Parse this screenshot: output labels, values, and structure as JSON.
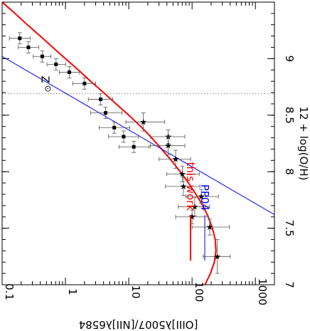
{
  "chart_data": {
    "type": "scatter",
    "orientation": "rotated-90",
    "xlabel": "12 + log(O/H)",
    "ylabel": "[OIII]λ5007/[NII]λ6584",
    "x_reversed": true,
    "xlim": [
      9.5,
      7.0
    ],
    "ylim": [
      0.1,
      2000
    ],
    "y_scale": "log",
    "x_ticks": [
      "9",
      "8.5",
      "8",
      "7.5",
      "7"
    ],
    "x_tick_values": [
      9,
      8.5,
      8,
      7.5,
      7
    ],
    "y_ticks": [
      "0.1",
      "1",
      "10",
      "100",
      "1000"
    ],
    "y_tick_values": [
      0.1,
      1,
      10,
      100,
      1000
    ],
    "reference_line": {
      "label": "Z",
      "symbol": "⊙",
      "x": 8.69,
      "style": "dotted"
    },
    "series": [
      {
        "name": "this work",
        "type": "line",
        "color": "#ff0000",
        "points": [
          [
            9.5,
            0.1
          ],
          [
            9.4,
            0.16
          ],
          [
            9.3,
            0.25
          ],
          [
            9.2,
            0.4
          ],
          [
            9.1,
            0.63
          ],
          [
            9.0,
            1.0
          ],
          [
            8.9,
            1.6
          ],
          [
            8.8,
            2.5
          ],
          [
            8.7,
            4.0
          ],
          [
            8.6,
            6.3
          ],
          [
            8.5,
            10.0
          ],
          [
            8.4,
            15.5
          ],
          [
            8.3,
            23.0
          ],
          [
            8.2,
            33.0
          ],
          [
            8.1,
            47.0
          ],
          [
            8.0,
            65.0
          ],
          [
            7.9,
            88.0
          ],
          [
            7.8,
            115.0
          ],
          [
            7.7,
            148.0
          ],
          [
            7.6,
            180.0
          ],
          [
            7.5,
            210.0
          ],
          [
            7.4,
            232.0
          ],
          [
            7.3,
            238.0
          ],
          [
            7.2,
            225.0
          ],
          [
            7.1,
            195.0
          ],
          [
            7.0,
            160.0
          ]
        ]
      },
      {
        "name": "PP04",
        "type": "line",
        "color": "#0000ff",
        "points": [
          [
            9.02,
            0.1
          ],
          [
            7.62,
            2000
          ]
        ]
      },
      {
        "name": "",
        "type": "points",
        "marker": "square",
        "color": "#000000",
        "points": [
          {
            "x": 9.18,
            "y": 0.19,
            "xerr": 0.05,
            "yerr": [
              0.06,
              0.09
            ]
          },
          {
            "x": 9.1,
            "y": 0.26,
            "xerr": 0.05,
            "yerr": [
              0.08,
              0.12
            ]
          },
          {
            "x": 9.02,
            "y": 0.43,
            "xerr": 0.05,
            "yerr": [
              0.12,
              0.16
            ]
          },
          {
            "x": 8.95,
            "y": 0.71,
            "xerr": 0.05,
            "yerr": [
              0.2,
              0.3
            ]
          },
          {
            "x": 8.88,
            "y": 1.15,
            "xerr": 0.05,
            "yerr": [
              0.35,
              0.5
            ]
          },
          {
            "x": 8.78,
            "y": 2.0,
            "xerr": 0.05,
            "yerr": [
              0.7,
              1.0
            ]
          },
          {
            "x": 8.64,
            "y": 3.6,
            "xerr": 0.05,
            "yerr": [
              1.3,
              2.0
            ]
          },
          {
            "x": 8.52,
            "y": 4.3,
            "xerr": 0.05,
            "yerr": [
              1.8,
              3.5
            ]
          },
          {
            "x": 8.39,
            "y": 5.9,
            "xerr": 0.05,
            "yerr": [
              2.5,
              4.5
            ]
          },
          {
            "x": 8.31,
            "y": 8.3,
            "xerr": 0.05,
            "yerr": [
              3.5,
              6.0
            ]
          },
          {
            "x": 8.22,
            "y": 12.0,
            "xerr": 0.05,
            "yerr": [
              5.0,
              9.0
            ]
          }
        ]
      },
      {
        "name": "",
        "type": "points",
        "marker": "star",
        "color": "#000000",
        "points": [
          {
            "x": 8.44,
            "y": 17.0,
            "xerr": 0.08,
            "yerr": [
              8.0,
              20.0
            ]
          },
          {
            "x": 8.31,
            "y": 42.0,
            "xerr": 0.06,
            "yerr": [
              20.0,
              35.0
            ]
          },
          {
            "x": 8.23,
            "y": 42.0,
            "xerr": 0.08,
            "yerr": [
              20.0,
              35.0
            ]
          },
          {
            "x": 8.11,
            "y": 55.0,
            "xerr": 0.08,
            "yerr": [
              25.0,
              40.0
            ]
          },
          {
            "x": 7.98,
            "y": 70.0,
            "xerr": 0.07,
            "yerr": [
              30.0,
              60.0
            ]
          },
          {
            "x": 7.87,
            "y": 73.0,
            "xerr": 0.08,
            "yerr": [
              35.0,
              60.0
            ]
          },
          {
            "x": 7.78,
            "y": 140.0,
            "xerr": 0.06,
            "yerr": [
              60.0,
              120.0
            ]
          },
          {
            "x": 7.69,
            "y": 110.0,
            "xerr": 0.08,
            "yerr": [
              50.0,
              80.0
            ]
          },
          {
            "x": 7.6,
            "y": 100.0,
            "xerr": 0.06,
            "yerr": [
              45.0,
              80.0
            ]
          },
          {
            "x": 7.51,
            "y": 190.0,
            "xerr": 0.07,
            "yerr": [
              90.0,
              200.0
            ]
          },
          {
            "x": 7.25,
            "y": 250.0,
            "xerr": 0.15,
            "yerr": [
              100.0,
              150.0
            ]
          }
        ]
      }
    ],
    "legend": {
      "placement": "bottom-right",
      "entries": [
        {
          "label": "this work",
          "color": "#ff0000"
        },
        {
          "label": "PP04",
          "color": "#0000ff"
        }
      ]
    }
  }
}
